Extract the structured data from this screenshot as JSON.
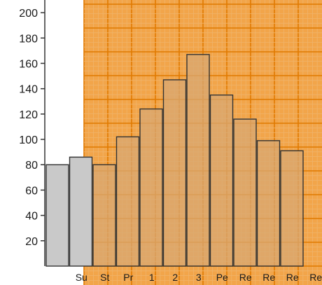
{
  "chart_data": {
    "type": "bar",
    "title": "",
    "xlabel": "",
    "ylabel": "",
    "ylim": [
      0,
      210
    ],
    "yticks": [
      20,
      40,
      60,
      80,
      100,
      120,
      140,
      160,
      180,
      200
    ],
    "categories": [
      "",
      "Su",
      "St",
      "Pr",
      "1",
      "2",
      "3",
      "Pe",
      "Re",
      "Re",
      "Re",
      "Re"
    ],
    "values": [
      80,
      86,
      80,
      102,
      124,
      147,
      167,
      135,
      116,
      99,
      91,
      0
    ],
    "grid": true,
    "colors": {
      "background_plain": "#ffffff",
      "background_graph_paper": "#f2a54a",
      "grid_major": "#e07a00",
      "grid_minor": "#f0b36a",
      "bar_plain": "#c9c9c9",
      "bar_graph_paper": "#d8a873",
      "bar_edge": "#333333",
      "axis": "#333333"
    }
  }
}
